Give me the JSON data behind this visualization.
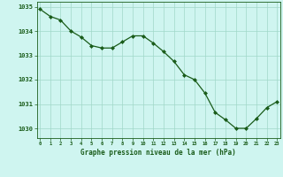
{
  "x": [
    0,
    1,
    2,
    3,
    4,
    5,
    6,
    7,
    8,
    9,
    10,
    11,
    12,
    13,
    14,
    15,
    16,
    17,
    18,
    19,
    20,
    21,
    22,
    23
  ],
  "y": [
    1034.9,
    1034.6,
    1034.45,
    1034.0,
    1033.75,
    1033.4,
    1033.3,
    1033.3,
    1033.55,
    1033.8,
    1033.8,
    1033.5,
    1033.15,
    1032.75,
    1032.2,
    1032.0,
    1031.45,
    1030.65,
    1030.35,
    1030.0,
    1030.0,
    1030.4,
    1030.85,
    1031.1
  ],
  "line_color": "#1a5c1a",
  "marker": "D",
  "marker_size": 2.0,
  "background_color": "#cff5f0",
  "grid_color": "#a0d8c8",
  "xlabel": "Graphe pression niveau de la mer (hPa)",
  "xlabel_color": "#1a5c1a",
  "tick_color": "#1a5c1a",
  "axis_color": "#1a5c1a",
  "ylim": [
    1029.6,
    1035.2
  ],
  "yticks": [
    1030,
    1031,
    1032,
    1033,
    1034,
    1035
  ],
  "xticks": [
    0,
    1,
    2,
    3,
    4,
    5,
    6,
    7,
    8,
    9,
    10,
    11,
    12,
    13,
    14,
    15,
    16,
    17,
    18,
    19,
    20,
    21,
    22,
    23
  ]
}
